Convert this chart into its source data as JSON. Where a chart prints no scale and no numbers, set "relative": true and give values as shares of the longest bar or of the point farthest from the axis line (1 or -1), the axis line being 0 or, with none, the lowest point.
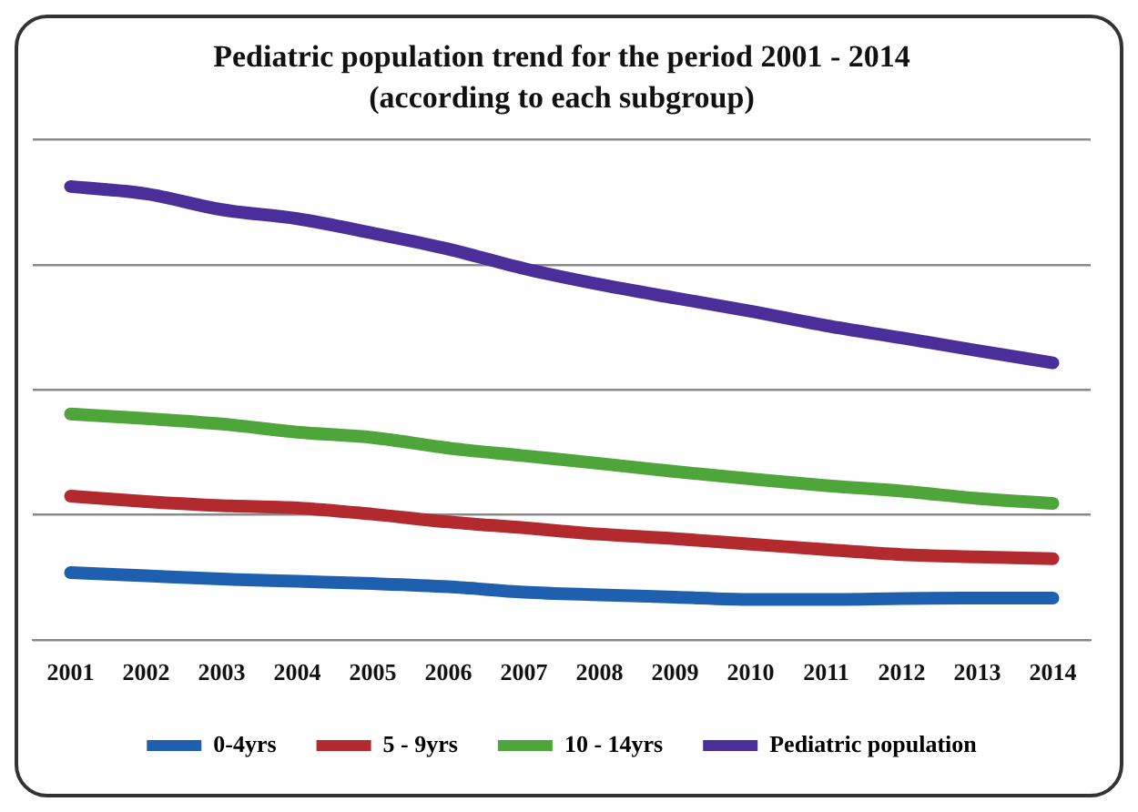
{
  "chart_data": {
    "type": "line",
    "title": "Pediatric population trend for the period 2001 - 2014",
    "subtitle": "(according to each subgroup)",
    "relative": true,
    "grid": "y",
    "legend": "bottom",
    "marker": "none",
    "line_style": "solid",
    "categories": [
      "2001",
      "2002",
      "2003",
      "2004",
      "2005",
      "2006",
      "2007",
      "2008",
      "2009",
      "2010",
      "2011",
      "2012",
      "2013",
      "2014"
    ],
    "series": [
      {
        "name": "0-4yrs",
        "color": "#1f5fb0",
        "values": [
          0.148,
          0.141,
          0.134,
          0.129,
          0.124,
          0.117,
          0.105,
          0.099,
          0.094,
          0.089,
          0.089,
          0.091,
          0.092,
          0.092
        ]
      },
      {
        "name": "5 - 9yrs",
        "color": "#b22a2e",
        "values": [
          0.317,
          0.305,
          0.296,
          0.291,
          0.277,
          0.26,
          0.247,
          0.233,
          0.223,
          0.211,
          0.199,
          0.188,
          0.183,
          0.179
        ]
      },
      {
        "name": "10 - 14yrs",
        "color": "#4ea63a",
        "values": [
          0.498,
          0.488,
          0.476,
          0.458,
          0.446,
          0.423,
          0.406,
          0.389,
          0.371,
          0.355,
          0.34,
          0.328,
          0.312,
          0.301
        ]
      },
      {
        "name": "Pediatric population",
        "color": "#4a2f9a",
        "values": [
          1,
          0.984,
          0.949,
          0.929,
          0.897,
          0.862,
          0.819,
          0.784,
          0.754,
          0.725,
          0.693,
          0.666,
          0.638,
          0.611
        ]
      }
    ]
  }
}
